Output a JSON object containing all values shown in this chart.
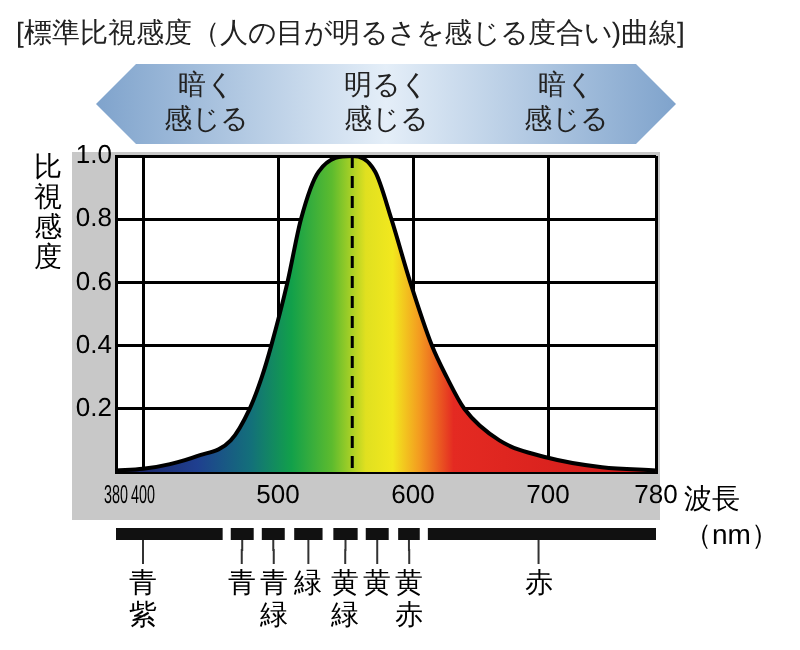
{
  "chart_data": {
    "type": "area",
    "title": "[標準比視感度（人の目が明るさを感じる度合い)曲線]",
    "xlabel": "波長（nm）",
    "ylabel": "比視感度",
    "annotations": [
      "暗く感じる",
      "明るく感じる",
      "暗く感じる",
      "青紫",
      "青",
      "青緑",
      "緑",
      "黄緑",
      "黄",
      "黄赤",
      "赤"
    ],
    "x": [
      380,
      400,
      420,
      440,
      465,
      479,
      488,
      495,
      507,
      517,
      530,
      555,
      572,
      584,
      598,
      614,
      625,
      638,
      664,
      700,
      740,
      780
    ],
    "series": [
      {
        "color": "#000000",
        "values": [
          0.005,
          0.01,
          0.025,
          0.05,
          0.1,
          0.2,
          0.3,
          0.4,
          0.6,
          0.8,
          0.95,
          1.0,
          0.95,
          0.8,
          0.6,
          0.4,
          0.3,
          0.2,
          0.1,
          0.045,
          0.015,
          0.005
        ]
      }
    ],
    "xlim": [
      380,
      780
    ],
    "xticks": [
      380,
      400,
      500,
      600,
      700,
      780
    ],
    "ylim": [
      0,
      1
    ],
    "yticks": [
      {
        "value": 0,
        "label": null
      },
      0.2,
      0.4,
      0.6,
      0.8,
      {
        "value": 1,
        "label": "1.0"
      }
    ],
    "grid": true,
    "legend": false,
    "ref_lines": [
      {
        "axis": "x",
        "value": 555,
        "color": "#000000",
        "line_style": "dashed"
      }
    ]
  }
}
